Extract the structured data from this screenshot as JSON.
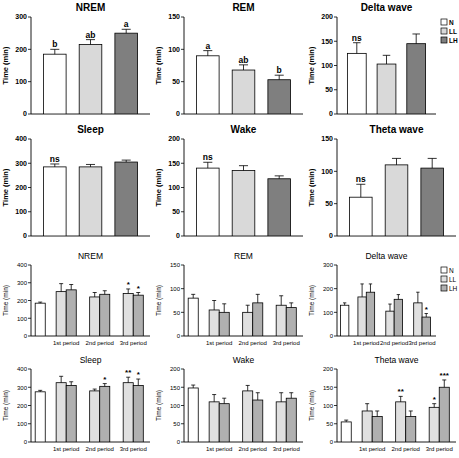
{
  "chart_data": [
    {
      "type": "bar",
      "title": "NREM",
      "ylabel": "Time (min)",
      "categories": [
        null
      ],
      "ylim": [
        0,
        300
      ],
      "yticks": [
        0,
        100,
        200,
        300
      ],
      "series": [
        {
          "name": "N",
          "color": "#ffffff",
          "values": [
            185
          ],
          "errors": [
            15
          ],
          "annotations": [
            "b"
          ]
        },
        {
          "name": "LL",
          "color": "#d9d9d9",
          "values": [
            215
          ],
          "errors": [
            15
          ],
          "annotations": [
            "ab"
          ]
        },
        {
          "name": "LH",
          "color": "#7f7f7f",
          "values": [
            250
          ],
          "errors": [
            12
          ],
          "annotations": [
            "a"
          ]
        }
      ]
    },
    {
      "type": "bar",
      "title": "REM",
      "ylabel": "Time (min)",
      "categories": [
        null
      ],
      "ylim": [
        0,
        150
      ],
      "yticks": [
        0,
        50,
        100,
        150
      ],
      "series": [
        {
          "name": "N",
          "color": "#ffffff",
          "values": [
            90
          ],
          "errors": [
            8
          ],
          "annotations": [
            "a"
          ]
        },
        {
          "name": "LL",
          "color": "#d9d9d9",
          "values": [
            68
          ],
          "errors": [
            8
          ],
          "annotations": [
            "ab"
          ]
        },
        {
          "name": "LH",
          "color": "#7f7f7f",
          "values": [
            53
          ],
          "errors": [
            7
          ],
          "annotations": [
            "b"
          ]
        }
      ]
    },
    {
      "type": "bar",
      "title": "Delta wave",
      "ylabel": "Time (min)",
      "categories": [
        null
      ],
      "ylim": [
        0,
        200
      ],
      "yticks": [
        0,
        50,
        100,
        150,
        200
      ],
      "legend": "upper right",
      "series": [
        {
          "name": "N",
          "color": "#ffffff",
          "values": [
            125
          ],
          "errors": [
            22
          ],
          "annotations": [
            "ns"
          ]
        },
        {
          "name": "LL",
          "color": "#d9d9d9",
          "values": [
            103
          ],
          "errors": [
            18
          ]
        },
        {
          "name": "LH",
          "color": "#7f7f7f",
          "values": [
            145
          ],
          "errors": [
            20
          ]
        }
      ]
    },
    {
      "type": "bar",
      "title": "Sleep",
      "ylabel": "Time (min)",
      "categories": [
        null
      ],
      "ylim": [
        0,
        400
      ],
      "yticks": [
        0,
        100,
        200,
        300,
        400
      ],
      "series": [
        {
          "name": "N",
          "color": "#ffffff",
          "values": [
            285
          ],
          "errors": [
            12
          ],
          "annotations": [
            "ns"
          ]
        },
        {
          "name": "LL",
          "color": "#d9d9d9",
          "values": [
            285
          ],
          "errors": [
            10
          ]
        },
        {
          "name": "LH",
          "color": "#7f7f7f",
          "values": [
            305
          ],
          "errors": [
            8
          ]
        }
      ]
    },
    {
      "type": "bar",
      "title": "Wake",
      "ylabel": "Time (min)",
      "categories": [
        null
      ],
      "ylim": [
        0,
        200
      ],
      "yticks": [
        0,
        50,
        100,
        150,
        200
      ],
      "series": [
        {
          "name": "N",
          "color": "#ffffff",
          "values": [
            140
          ],
          "errors": [
            12
          ],
          "annotations": [
            "ns"
          ]
        },
        {
          "name": "LL",
          "color": "#d9d9d9",
          "values": [
            135
          ],
          "errors": [
            10
          ]
        },
        {
          "name": "LH",
          "color": "#7f7f7f",
          "values": [
            118
          ],
          "errors": [
            6
          ]
        }
      ]
    },
    {
      "type": "bar",
      "title": "Theta wave",
      "ylabel": "Time (min)",
      "categories": [
        null
      ],
      "ylim": [
        0,
        150
      ],
      "yticks": [
        0,
        50,
        100,
        150
      ],
      "series": [
        {
          "name": "N",
          "color": "#ffffff",
          "values": [
            60
          ],
          "errors": [
            20
          ],
          "annotations": [
            "ns"
          ]
        },
        {
          "name": "LL",
          "color": "#d9d9d9",
          "values": [
            110
          ],
          "errors": [
            10
          ]
        },
        {
          "name": "LH",
          "color": "#7f7f7f",
          "values": [
            105
          ],
          "errors": [
            15
          ]
        }
      ]
    },
    {
      "type": "bar",
      "title": "NREM",
      "ylabel": "Time (min)",
      "categories": [
        null,
        "1st period",
        "2nd period",
        "3rd period"
      ],
      "ylim": [
        0,
        400
      ],
      "yticks": [
        0,
        100,
        200,
        300,
        400
      ],
      "series": [
        {
          "name": "N",
          "color": "#ffffff",
          "values": [
            185,
            null,
            null,
            null
          ],
          "errors": [
            6,
            null,
            null,
            null
          ]
        },
        {
          "name": "LL",
          "color": "#e0e0e0",
          "values": [
            null,
            250,
            220,
            240
          ],
          "errors": [
            null,
            45,
            25,
            25
          ],
          "annotations": [
            null,
            null,
            null,
            "*"
          ]
        },
        {
          "name": "LH",
          "color": "#b0b0b0",
          "values": [
            null,
            260,
            235,
            230
          ],
          "errors": [
            null,
            30,
            20,
            15
          ],
          "annotations": [
            null,
            null,
            null,
            "*"
          ]
        }
      ]
    },
    {
      "type": "bar",
      "title": "REM",
      "ylabel": "Time (min)",
      "categories": [
        null,
        "1st period",
        "2nd period",
        "3rd period"
      ],
      "ylim": [
        0,
        150
      ],
      "yticks": [
        0,
        50,
        100,
        150
      ],
      "series": [
        {
          "name": "N",
          "color": "#ffffff",
          "values": [
            80,
            null,
            null,
            null
          ],
          "errors": [
            8,
            null,
            null,
            null
          ]
        },
        {
          "name": "LL",
          "color": "#e0e0e0",
          "values": [
            null,
            55,
            50,
            65
          ],
          "errors": [
            null,
            20,
            15,
            20
          ]
        },
        {
          "name": "LH",
          "color": "#b0b0b0",
          "values": [
            null,
            50,
            70,
            60
          ],
          "errors": [
            null,
            18,
            18,
            10
          ]
        }
      ]
    },
    {
      "type": "bar",
      "title": "Delta wave",
      "ylabel": "Time (min)",
      "categories": [
        null,
        "1st period",
        "2nd period",
        "3rd period"
      ],
      "ylim": [
        0,
        300
      ],
      "yticks": [
        0,
        100,
        200,
        300
      ],
      "legend": "upper right",
      "series": [
        {
          "name": "N",
          "color": "#ffffff",
          "values": [
            130,
            null,
            null,
            null
          ],
          "errors": [
            10,
            null,
            null,
            null
          ]
        },
        {
          "name": "LL",
          "color": "#e0e0e0",
          "values": [
            null,
            165,
            105,
            140
          ],
          "errors": [
            null,
            55,
            30,
            45
          ]
        },
        {
          "name": "LH",
          "color": "#b0b0b0",
          "values": [
            null,
            185,
            155,
            80
          ],
          "errors": [
            null,
            35,
            20,
            15
          ],
          "annotations": [
            null,
            null,
            null,
            "*"
          ]
        }
      ]
    },
    {
      "type": "bar",
      "title": "Sleep",
      "ylabel": "Time (min)",
      "categories": [
        null,
        "1st period",
        "2nd period",
        "3rd period"
      ],
      "ylim": [
        0,
        400
      ],
      "yticks": [
        0,
        100,
        200,
        300,
        400
      ],
      "series": [
        {
          "name": "N",
          "color": "#ffffff",
          "values": [
            275,
            null,
            null,
            null
          ],
          "errors": [
            8,
            null,
            null,
            null
          ]
        },
        {
          "name": "LL",
          "color": "#e0e0e0",
          "values": [
            null,
            325,
            280,
            325
          ],
          "errors": [
            null,
            35,
            10,
            30
          ],
          "annotations": [
            null,
            null,
            null,
            "**"
          ]
        },
        {
          "name": "LH",
          "color": "#b0b0b0",
          "values": [
            null,
            310,
            305,
            310
          ],
          "errors": [
            null,
            20,
            15,
            35
          ],
          "annotations": [
            null,
            null,
            "*",
            "*"
          ]
        }
      ]
    },
    {
      "type": "bar",
      "title": "Wake",
      "ylabel": "Time (min)",
      "categories": [
        null,
        "1st period",
        "2nd period",
        "3rd period"
      ],
      "ylim": [
        0,
        200
      ],
      "yticks": [
        0,
        50,
        100,
        150,
        200
      ],
      "series": [
        {
          "name": "N",
          "color": "#ffffff",
          "values": [
            148,
            null,
            null,
            null
          ],
          "errors": [
            8,
            null,
            null,
            null
          ]
        },
        {
          "name": "LL",
          "color": "#e0e0e0",
          "values": [
            null,
            110,
            140,
            110
          ],
          "errors": [
            null,
            20,
            15,
            25
          ]
        },
        {
          "name": "LH",
          "color": "#b0b0b0",
          "values": [
            null,
            105,
            115,
            120
          ],
          "errors": [
            null,
            15,
            20,
            15
          ]
        }
      ]
    },
    {
      "type": "bar",
      "title": "Theta wave",
      "ylabel": "Time (min)",
      "categories": [
        null,
        "1st period",
        "2nd period",
        "3rd period"
      ],
      "ylim": [
        0,
        200
      ],
      "yticks": [
        0,
        50,
        100,
        150,
        200
      ],
      "series": [
        {
          "name": "N",
          "color": "#ffffff",
          "values": [
            55,
            null,
            null,
            null
          ],
          "errors": [
            5,
            null,
            null,
            null
          ]
        },
        {
          "name": "LL",
          "color": "#e0e0e0",
          "values": [
            null,
            85,
            110,
            95
          ],
          "errors": [
            null,
            20,
            15,
            10
          ],
          "annotations": [
            null,
            null,
            "**",
            "*"
          ]
        },
        {
          "name": "LH",
          "color": "#b0b0b0",
          "values": [
            null,
            70,
            70,
            150
          ],
          "errors": [
            null,
            15,
            15,
            20
          ],
          "annotations": [
            null,
            null,
            null,
            "***"
          ]
        }
      ]
    }
  ]
}
